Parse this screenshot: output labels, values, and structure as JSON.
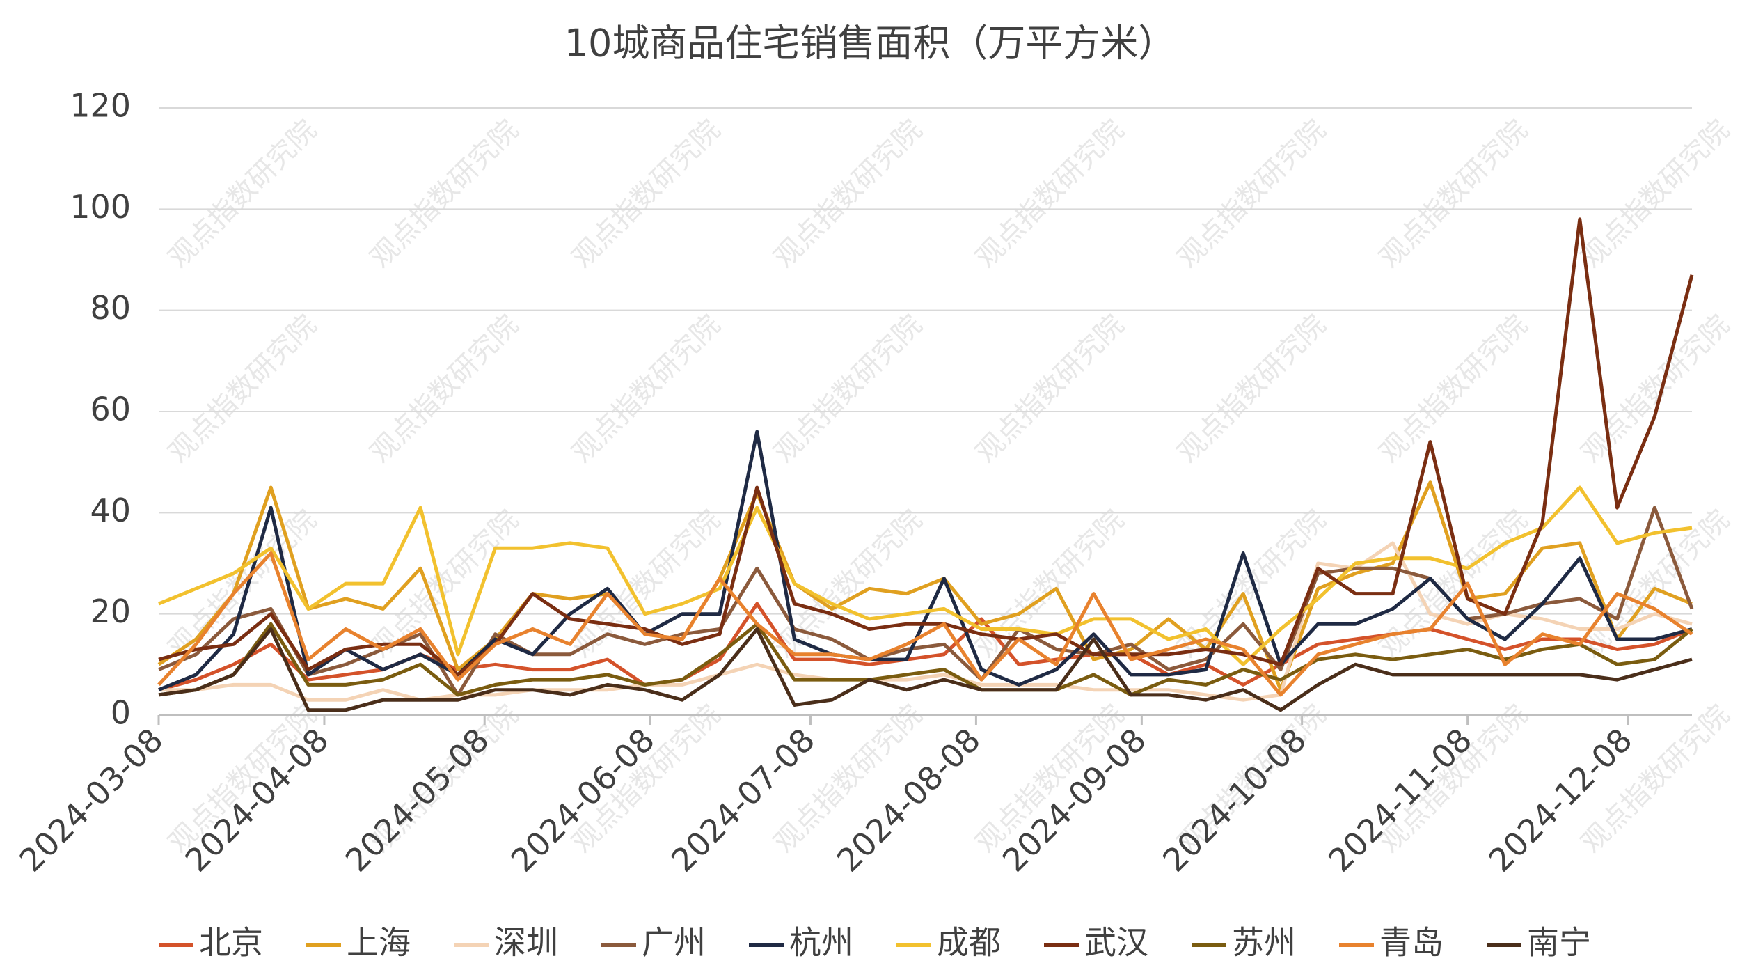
{
  "chart_data": {
    "type": "line",
    "title": "10城商品住宅销售面积（万平方米）",
    "watermark": "观点指数研究院",
    "x": [
      "2024-03-08",
      "2024-03-15",
      "2024-03-22",
      "2024-03-29",
      "2024-04-05",
      "2024-04-12",
      "2024-04-19",
      "2024-04-26",
      "2024-05-03",
      "2024-05-10",
      "2024-05-17",
      "2024-05-24",
      "2024-05-31",
      "2024-06-07",
      "2024-06-14",
      "2024-06-21",
      "2024-06-28",
      "2024-07-05",
      "2024-07-12",
      "2024-07-19",
      "2024-07-26",
      "2024-08-02",
      "2024-08-09",
      "2024-08-16",
      "2024-08-23",
      "2024-08-30",
      "2024-09-06",
      "2024-09-13",
      "2024-09-20",
      "2024-09-27",
      "2024-10-04",
      "2024-10-11",
      "2024-10-18",
      "2024-10-25",
      "2024-11-01",
      "2024-11-08",
      "2024-11-15",
      "2024-11-22",
      "2024-11-29",
      "2024-12-06",
      "2024-12-13",
      "2024-12-20"
    ],
    "xlim": [
      "2024-03-08",
      "2024-12-20"
    ],
    "xticks": [
      "2024-03-08",
      "2024-04-08",
      "2024-05-08",
      "2024-06-08",
      "2024-07-08",
      "2024-08-08",
      "2024-09-08",
      "2024-10-08",
      "2024-11-08",
      "2024-12-08"
    ],
    "ylim": [
      0,
      120
    ],
    "yticks": [
      0,
      20,
      40,
      60,
      80,
      100,
      120
    ],
    "grid": true,
    "series": [
      {
        "name": "北京",
        "color": "#d4522a",
        "values": [
          5,
          7,
          10,
          14,
          7,
          8,
          9,
          12,
          9,
          10,
          9,
          9,
          11,
          6,
          7,
          11,
          22,
          11,
          11,
          10,
          11,
          12,
          19,
          10,
          11,
          12,
          12,
          8,
          10,
          6,
          10,
          14,
          15,
          16,
          17,
          15,
          13,
          15,
          15,
          13,
          14,
          17
        ]
      },
      {
        "name": "上海",
        "color": "#e0a020",
        "values": [
          10,
          15,
          24,
          45,
          21,
          23,
          21,
          29,
          9,
          15,
          24,
          23,
          24,
          16,
          15,
          27,
          44,
          26,
          21,
          25,
          24,
          27,
          18,
          20,
          25,
          11,
          13,
          19,
          13,
          24,
          5,
          25,
          28,
          30,
          46,
          23,
          24,
          33,
          34,
          15,
          25,
          22
        ]
      },
      {
        "name": "深圳",
        "color": "#f4d3b5",
        "values": [
          5,
          5,
          6,
          6,
          3,
          3,
          5,
          3,
          4,
          4,
          5,
          5,
          5,
          6,
          6,
          8,
          10,
          8,
          7,
          7,
          7,
          8,
          6,
          6,
          6,
          5,
          5,
          5,
          4,
          3,
          4,
          30,
          29,
          34,
          20,
          18,
          20,
          19,
          17,
          17,
          20,
          18
        ]
      },
      {
        "name": "广州",
        "color": "#8b5a3c",
        "values": [
          9,
          12,
          19,
          21,
          8,
          10,
          13,
          16,
          4,
          16,
          12,
          12,
          16,
          14,
          16,
          17,
          29,
          17,
          15,
          11,
          13,
          14,
          7,
          17,
          13,
          12,
          14,
          9,
          11,
          18,
          9,
          28,
          29,
          29,
          27,
          19,
          20,
          22,
          23,
          19,
          41,
          21
        ]
      },
      {
        "name": "杭州",
        "color": "#1f2a44",
        "values": [
          5,
          8,
          16,
          41,
          8,
          13,
          9,
          12,
          8,
          15,
          12,
          20,
          25,
          16,
          20,
          20,
          56,
          15,
          12,
          11,
          11,
          27,
          9,
          6,
          9,
          16,
          8,
          8,
          9,
          32,
          10,
          18,
          18,
          21,
          27,
          19,
          15,
          22,
          31,
          15,
          15,
          17
        ]
      },
      {
        "name": "成都",
        "color": "#f2c12e",
        "values": [
          22,
          25,
          28,
          33,
          21,
          26,
          26,
          41,
          12,
          33,
          33,
          34,
          33,
          20,
          22,
          25,
          41,
          26,
          22,
          19,
          20,
          21,
          17,
          17,
          16,
          19,
          19,
          15,
          17,
          10,
          17,
          23,
          30,
          31,
          31,
          29,
          34,
          37,
          45,
          34,
          36,
          37
        ]
      },
      {
        "name": "武汉",
        "color": "#7a2e12",
        "values": [
          11,
          13,
          14,
          20,
          9,
          13,
          14,
          14,
          8,
          14,
          24,
          19,
          18,
          17,
          14,
          16,
          45,
          22,
          20,
          17,
          18,
          18,
          16,
          15,
          16,
          12,
          12,
          12,
          13,
          12,
          10,
          29,
          24,
          24,
          54,
          23,
          20,
          38,
          98,
          41,
          59,
          87
        ]
      },
      {
        "name": "苏州",
        "color": "#7a5c10",
        "values": [
          4,
          5,
          8,
          18,
          6,
          6,
          7,
          10,
          4,
          6,
          7,
          7,
          8,
          6,
          7,
          12,
          18,
          7,
          7,
          7,
          8,
          9,
          5,
          5,
          5,
          8,
          4,
          7,
          6,
          9,
          7,
          11,
          12,
          11,
          12,
          13,
          11,
          13,
          14,
          10,
          11,
          17
        ]
      },
      {
        "name": "青岛",
        "color": "#e8822e",
        "values": [
          6,
          14,
          24,
          32,
          11,
          17,
          13,
          17,
          7,
          14,
          17,
          14,
          24,
          16,
          15,
          27,
          18,
          12,
          12,
          11,
          14,
          18,
          7,
          15,
          10,
          24,
          11,
          13,
          15,
          13,
          4,
          12,
          14,
          16,
          17,
          26,
          10,
          16,
          14,
          24,
          21,
          16
        ]
      },
      {
        "name": "南宁",
        "color": "#4a2e1a",
        "values": [
          4,
          5,
          8,
          17,
          1,
          1,
          3,
          3,
          3,
          5,
          5,
          4,
          6,
          5,
          3,
          8,
          17,
          2,
          3,
          7,
          5,
          7,
          5,
          5,
          5,
          15,
          4,
          4,
          3,
          5,
          1,
          6,
          10,
          8,
          8,
          8,
          8,
          8,
          8,
          7,
          9,
          11
        ]
      }
    ]
  }
}
